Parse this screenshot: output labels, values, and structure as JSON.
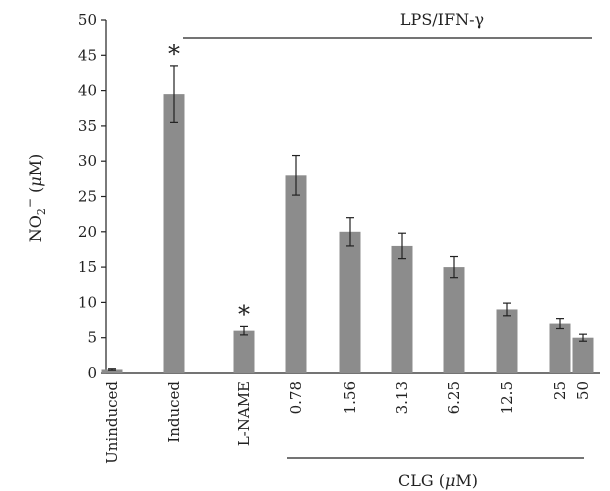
{
  "chart_data": {
    "type": "bar",
    "ylabel_main": "NO",
    "ylabel_sub": "2",
    "ylabel_sup": "−",
    "ylabel_unit_prefix": " (",
    "ylabel_unit_mu": "μ",
    "ylabel_unit_suffix": "M)",
    "ylim": [
      0,
      50
    ],
    "yticks": [
      "0",
      "5",
      "10",
      "15",
      "20",
      "25",
      "30",
      "35",
      "40",
      "45",
      "50"
    ],
    "categories": [
      "Uninduced",
      "Induced",
      "L-NAME",
      "0.78",
      "1.56",
      "3.13",
      "6.25",
      "12.5",
      "25",
      "50"
    ],
    "values": [
      0.5,
      39.5,
      6,
      28,
      20,
      18,
      15,
      9,
      7,
      5
    ],
    "errors": [
      0.1,
      4,
      0.6,
      2.8,
      2,
      1.8,
      1.5,
      0.9,
      0.7,
      0.5
    ],
    "significance": [
      "",
      "*",
      "*",
      "",
      "",
      "",
      "",
      "",
      "",
      ""
    ],
    "bracket_top": {
      "label": "LPS/IFN-γ"
    },
    "bracket_bottom": {
      "label_prefix": "CLG (",
      "label_mu": "μ",
      "label_suffix": "M)"
    },
    "bar_color": "#8c8c8c"
  }
}
